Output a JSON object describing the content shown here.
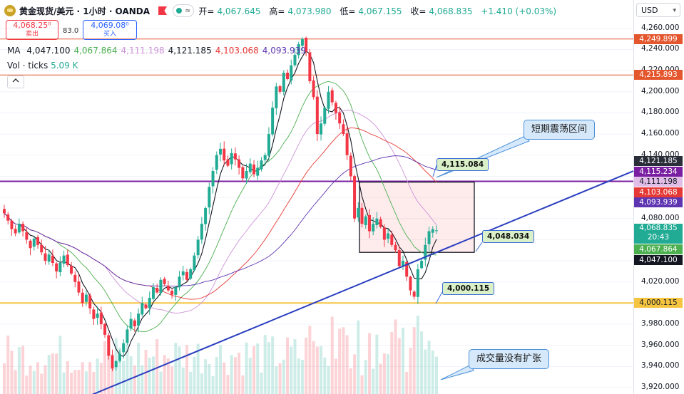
{
  "header": {
    "symbol": "黄金现货/美元 · 1小时 · OANDA",
    "open_label": "开=",
    "open": "4,067.645",
    "high_label": "高=",
    "high": "4,073.980",
    "low_label": "低=",
    "low": "4,067.155",
    "close_label": "收=",
    "close": "4,068.835",
    "change": "+1.410 (+0.03%)"
  },
  "pill_glyph": "≈",
  "trade": {
    "sell_price": "4,068.25⁰",
    "sell_label": "卖出",
    "spread": "83.0",
    "buy_price": "4,069.08⁰",
    "buy_label": "买入"
  },
  "ma": {
    "label": "MA",
    "values": [
      {
        "value": "4,047.100",
        "color": "#131722"
      },
      {
        "value": "4,067.864",
        "color": "#4caf50"
      },
      {
        "value": "4,111.198",
        "color": "#ce93d8"
      },
      {
        "value": "4,121.185",
        "color": "#131722"
      },
      {
        "value": "4,103.068",
        "color": "#e53935"
      },
      {
        "value": "4,093.939",
        "color": "#5e35b1"
      }
    ]
  },
  "vol": {
    "label": "Vol · ticks",
    "value": "5.09 K"
  },
  "currency": "USD",
  "colors": {
    "up": "#22ab94",
    "down": "#f23645",
    "accent": "#2962ff"
  },
  "axis": {
    "ticks": [
      "4,260.000",
      "4,240.000",
      "4,220.000",
      "4,200.000",
      "4,180.000",
      "4,160.000",
      "4,140.000",
      "4,080.000",
      "4,020.000",
      "3,980.000",
      "3,960.000",
      "3,940.000",
      "3,920.000"
    ]
  },
  "price_tags": [
    {
      "text": "4,249.899",
      "bg": "#e4572e"
    },
    {
      "text": "4,215.893",
      "bg": "#e4572e"
    },
    {
      "text": "4,121.185",
      "bg": "#2a2e39"
    },
    {
      "text": "4,115.234",
      "bg": "#7b1fa2"
    },
    {
      "text": "4,111.198",
      "bg": "#e1bee7",
      "fg": "#131722"
    },
    {
      "text": "4,103.068",
      "bg": "#e53935"
    },
    {
      "text": "4,093.939",
      "bg": "#5e35b1"
    },
    {
      "text": "4,068.835",
      "sub": "20:43",
      "bg": "#22ab94"
    },
    {
      "text": "4,067.864",
      "bg": "#4caf50"
    },
    {
      "text": "4,047.100",
      "bg": "#131722"
    },
    {
      "text": "4,000.115",
      "bg": "#f5c542",
      "fg": "#131722"
    }
  ],
  "annotations": {
    "range_callout": "短期震荡区间",
    "volume_callout": "成交量没有扩张",
    "label_top": "4,115.084",
    "label_mid": "4,048.034",
    "label_low": "4,000.115"
  },
  "chart_data": {
    "type": "candlestick",
    "timeframe": "1小时",
    "ylim": [
      3920,
      4270
    ],
    "closes": [
      4085,
      4078,
      4070,
      4066,
      4075,
      4068,
      4060,
      4052,
      4061,
      4055,
      4048,
      4040,
      4046,
      4038,
      4030,
      4038,
      4045,
      4036,
      4028,
      4020,
      4010,
      4000,
      4008,
      3995,
      3985,
      3990,
      3980,
      3970,
      3950,
      3938,
      3945,
      3952,
      3962,
      3975,
      3985,
      3978,
      3990,
      4000,
      3995,
      4005,
      4015,
      4010,
      4022,
      4018,
      4012,
      4008,
      4015,
      4025,
      4030,
      4022,
      4032,
      4045,
      4060,
      4075,
      4090,
      4110,
      4125,
      4140,
      4146,
      4135,
      4130,
      4142,
      4136,
      4128,
      4118,
      4125,
      4132,
      4122,
      4128,
      4135,
      4140,
      4160,
      4185,
      4205,
      4200,
      4218,
      4212,
      4225,
      4235,
      4245,
      4250,
      4238,
      4210,
      4195,
      4160,
      4170,
      4185,
      4200,
      4190,
      4180,
      4170,
      4160,
      4140,
      4120,
      4080,
      4090,
      4075,
      4082,
      4068,
      4075,
      4080,
      4072,
      4060,
      4066,
      4055,
      4050,
      4035,
      4040,
      4025,
      4012,
      4006,
      4032,
      4040,
      4055,
      4068,
      4070,
      4068.835
    ],
    "range_box": {
      "top": 4114.5,
      "bottom": 4048.0
    },
    "horizontal_levels": [
      {
        "price": 4249.899,
        "color": "#e4572e"
      },
      {
        "price": 4215.893,
        "color": "#e4572e"
      },
      {
        "price": 4115.234,
        "color": "#7b1fa2"
      },
      {
        "price": 4000.115,
        "color": "#f5c542"
      }
    ],
    "trendline": {
      "from": 3913,
      "to": 4125
    },
    "volume": {
      "label": "Vol · ticks",
      "last": "5.09 K"
    }
  }
}
